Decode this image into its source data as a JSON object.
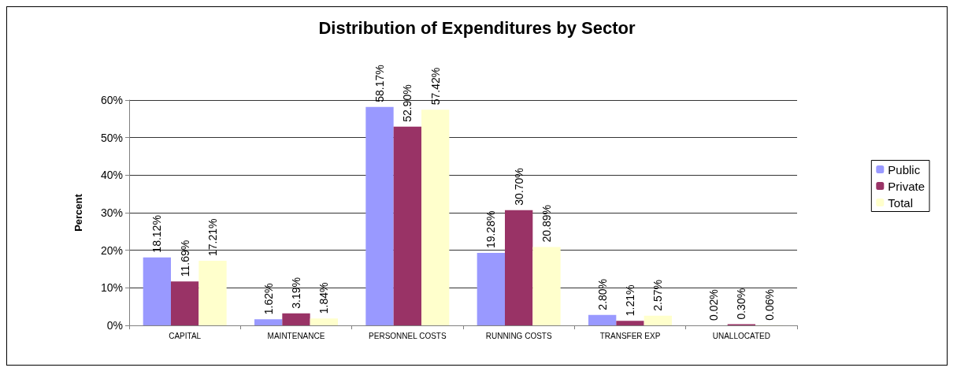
{
  "chart_data": {
    "type": "bar",
    "title": "Distribution of Expenditures by Sector",
    "ylabel": "Percent",
    "categories": [
      "CAPITAL",
      "MAINTENANCE",
      "PERSONNEL COSTS",
      "RUNNING COSTS",
      "TRANSFER EXP",
      "UNALLOCATED"
    ],
    "series": [
      {
        "name": "Public",
        "color": "#9999ff",
        "values": [
          18.12,
          1.62,
          58.17,
          19.28,
          2.8,
          0.02
        ],
        "value_labels": [
          "18.12%",
          "1.62%",
          "58.17%",
          "19.28%",
          "2.80%",
          "0.02%"
        ]
      },
      {
        "name": "Private",
        "color": "#993366",
        "values": [
          11.69,
          3.19,
          52.9,
          30.7,
          1.21,
          0.3
        ],
        "value_labels": [
          "11.69%",
          "3.19%",
          "52.90%",
          "30.70%",
          "1.21%",
          "0.30%"
        ]
      },
      {
        "name": "Total",
        "color": "#ffffcc",
        "values": [
          17.21,
          1.84,
          57.42,
          20.89,
          2.57,
          0.06
        ],
        "value_labels": [
          "17.21%",
          "1.84%",
          "57.42%",
          "20.89%",
          "2.57%",
          "0.06%"
        ]
      }
    ],
    "ylim": [
      0,
      60
    ],
    "yticks": [
      {
        "value": 0,
        "label": "0%"
      },
      {
        "value": 10,
        "label": "10%"
      },
      {
        "value": 20,
        "label": "20%"
      },
      {
        "value": 30,
        "label": "30%"
      },
      {
        "value": 40,
        "label": "40%"
      },
      {
        "value": 50,
        "label": "50%"
      },
      {
        "value": 60,
        "label": "60%"
      }
    ],
    "grid": "y",
    "legend": "right"
  }
}
